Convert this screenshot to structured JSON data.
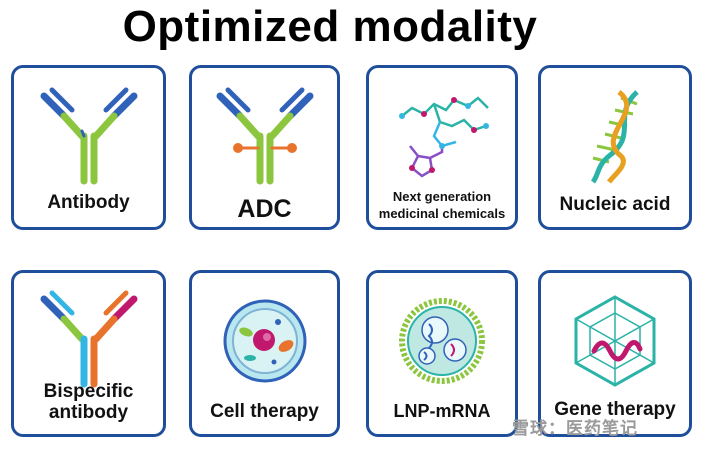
{
  "title": "Optimized modality",
  "cards": [
    {
      "label": "Antibody",
      "icon": "antibody-icon"
    },
    {
      "label": "ADC",
      "icon": "adc-icon"
    },
    {
      "label_line1": "Next generation",
      "label_line2": "medicinal chemicals",
      "icon": "molecule-icon"
    },
    {
      "label": "Nucleic acid",
      "icon": "dna-icon"
    },
    {
      "label_line1": "Bispecific",
      "label_line2": "antibody",
      "icon": "bispecific-antibody-icon"
    },
    {
      "label": "Cell therapy",
      "icon": "cell-icon"
    },
    {
      "label": "LNP-mRNA",
      "icon": "lnp-icon"
    },
    {
      "label": "Gene therapy",
      "icon": "viral-vector-icon"
    }
  ],
  "watermark": "雪球：医药笔记",
  "colors": {
    "border": "#1f4e9a",
    "blue": "#2f62b8",
    "green": "#8cc63f",
    "teal": "#2bb3a7",
    "orange": "#e8732c",
    "magenta": "#c0186d",
    "cyan": "#34b6e4"
  }
}
